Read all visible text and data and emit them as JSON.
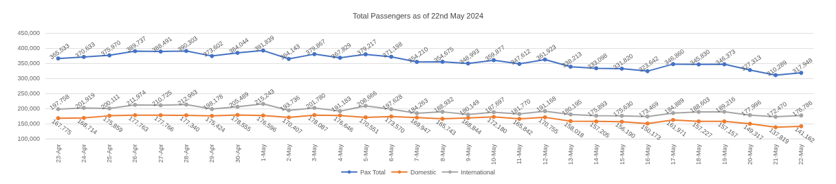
{
  "chart_data": {
    "type": "line",
    "title": "Total Passengers as of 22nd May 2024",
    "categories": [
      "23-Apr",
      "24-Apr",
      "25-Apr",
      "26-Apr",
      "27-Apr",
      "28-Apr",
      "29-Apr",
      "30-Apr",
      "1-May",
      "2-May",
      "3-May",
      "4-May",
      "5-May",
      "6-May",
      "7-May",
      "8-May",
      "9-May",
      "10-May",
      "11-May",
      "12-May",
      "13-May",
      "14-May",
      "15-May",
      "16-May",
      "17-May",
      "18-May",
      "19-May",
      "20-May",
      "21-May",
      "22-May"
    ],
    "series": [
      {
        "name": "Pax Total",
        "color": "#4472c4",
        "values": [
          365533,
          370633,
          375970,
          389737,
          388491,
          390303,
          373602,
          384044,
          391839,
          364143,
          379867,
          367829,
          379217,
          371198,
          354210,
          354675,
          348993,
          359877,
          347612,
          361923,
          338213,
          333098,
          331820,
          323642,
          346860,
          345830,
          346373,
          327313,
          310289,
          317948
        ],
        "value_labels": [
          "365,533",
          "370,633",
          "375,970",
          "389,737",
          "388,491",
          "390,303",
          "373,602",
          "384,044",
          "391,839",
          "364,143",
          "379,867",
          "367,829",
          "379,217",
          "371,198",
          "354,210",
          "354,675",
          "348,993",
          "359,877",
          "347,612",
          "361,923",
          "338,213",
          "333,098",
          "331,820",
          "323,642",
          "346,860",
          "345,830",
          "346,373",
          "327,313",
          "310,289",
          "317,948"
        ]
      },
      {
        "name": "Domestic",
        "color": "#ed7d31",
        "values": [
          167775,
          168714,
          175859,
          177763,
          177766,
          177340,
          175424,
          178555,
          176596,
          170407,
          178087,
          176646,
          170551,
          173570,
          169947,
          165743,
          168844,
          172180,
          165842,
          170755,
          158018,
          157205,
          156190,
          150173,
          161971,
          157227,
          157157,
          149317,
          137819,
          141162
        ],
        "value_labels": [
          "167,775",
          "168,714",
          "175,859",
          "177,763",
          "177,766",
          "177,340",
          "175,424",
          "178,555",
          "176,596",
          "170,407",
          "178,087",
          "176,646",
          "170,551",
          "173,570",
          "169,947",
          "165,743",
          "168,844",
          "172,180",
          "165,842",
          "170,755",
          "158,018",
          "157,205",
          "156,190",
          "150,173",
          "161,971",
          "157,227",
          "157,157",
          "149,317",
          "137,819",
          "141,162"
        ]
      },
      {
        "name": "International",
        "color": "#a5a5a5",
        "values": [
          197758,
          201919,
          200111,
          211974,
          210725,
          212963,
          198178,
          205489,
          215243,
          193736,
          201780,
          191183,
          208666,
          197628,
          184263,
          188932,
          180149,
          187697,
          181770,
          191168,
          180195,
          175893,
          175630,
          173469,
          184889,
          188603,
          189216,
          177996,
          172470,
          176786
        ],
        "value_labels": [
          "197,758",
          "201,919",
          "200,111",
          "211,974",
          "210,725",
          "212,963",
          "198,178",
          "205,489",
          "215,243",
          "193,736",
          "201,780",
          "191,183",
          "208,666",
          "197,628",
          "184,263",
          "188,932",
          "180,149",
          "187,697",
          "181,770",
          "191,168",
          "180,195",
          "175,893",
          "175,630",
          "173,469",
          "184,889",
          "188,603",
          "189,216",
          "177,996",
          "172,470",
          "176,786"
        ]
      }
    ],
    "ylim": [
      100000,
      450000
    ],
    "yticks": [
      {
        "value": 100000,
        "label": "100,000"
      },
      {
        "value": 150000,
        "label": "150,000"
      },
      {
        "value": 200000,
        "label": "200,000"
      },
      {
        "value": 250000,
        "label": "250,000"
      },
      {
        "value": 300000,
        "label": "300,000"
      },
      {
        "value": 350000,
        "label": "350,000"
      },
      {
        "value": 400000,
        "label": "400,000"
      },
      {
        "value": 450000,
        "label": "450,000"
      }
    ],
    "grid": "y",
    "legend": "bottom",
    "marker": "circle",
    "line_style": "solid"
  }
}
